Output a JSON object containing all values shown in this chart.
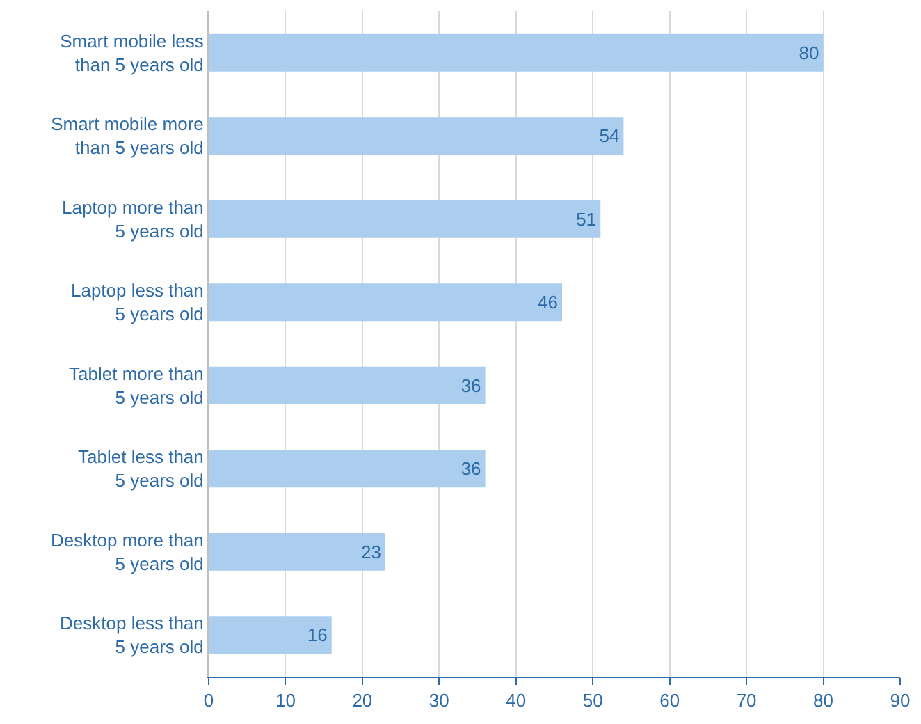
{
  "chart_data": {
    "type": "bar",
    "orientation": "horizontal",
    "categories": [
      "Smart mobile less than 5 years old",
      "Smart mobile more than 5 years old",
      "Laptop more than 5 years old",
      "Laptop less than 5 years old",
      "Tablet more than 5 years old",
      "Tablet less than 5 years old",
      "Desktop more than 5 years old",
      "Desktop less than 5 years old"
    ],
    "values": [
      80,
      54,
      51,
      46,
      36,
      36,
      23,
      16
    ],
    "color": "#abcdee",
    "xlim": [
      0,
      90
    ],
    "xticks": [
      0,
      10,
      20,
      30,
      40,
      50,
      60,
      70,
      80,
      90
    ],
    "grid": "x",
    "data_labels": true
  }
}
